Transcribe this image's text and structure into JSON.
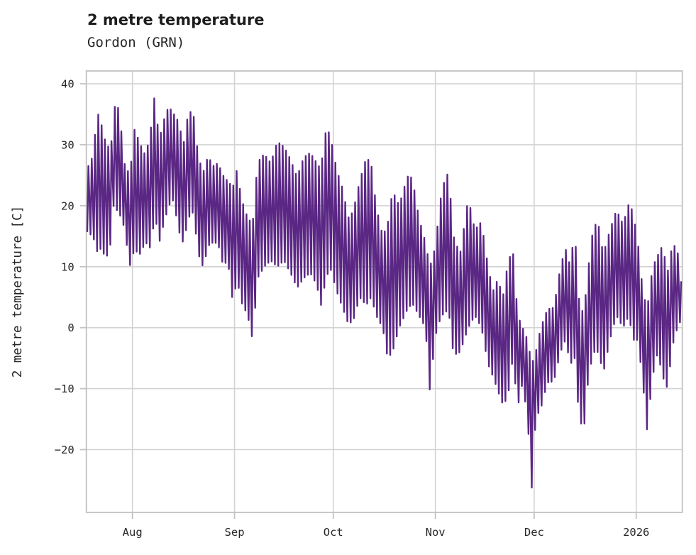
{
  "header": {
    "title": "2 metre temperature",
    "subtitle": "Gordon (GRN)"
  },
  "chart_data": {
    "type": "line",
    "title": "2 metre temperature",
    "subtitle": "Gordon (GRN)",
    "xlabel": "",
    "ylabel": "2 metre temperature [C]",
    "legend": null,
    "grid": true,
    "background": "#ffffff",
    "line_color": "#5b2784",
    "grid_color": "#d2d2d2",
    "spine_color": "#c2c2c2",
    "tick_color": "#c2c2c2",
    "text_color": "#262626",
    "ylim": [
      -30.3,
      42.1
    ],
    "x_axis": {
      "unit": "days since series start (~18 July)",
      "start_label_day": 0,
      "end_day": 181,
      "note": "x tick marks sit at the first day of each month; series is sub-daily temperature with strong diurnal cycle"
    },
    "yticks": [
      {
        "label": "40",
        "value": 40
      },
      {
        "label": "30",
        "value": 30
      },
      {
        "label": "20",
        "value": 20
      },
      {
        "label": "10",
        "value": 10
      },
      {
        "label": "0",
        "value": 0
      },
      {
        "label": "−10",
        "value": -10
      },
      {
        "label": "−20",
        "value": -20
      }
    ],
    "xticks": [
      {
        "label": "Aug",
        "day": 14
      },
      {
        "label": "Sep",
        "day": 45
      },
      {
        "label": "Oct",
        "day": 75
      },
      {
        "label": "Nov",
        "day": 106
      },
      {
        "label": "Dec",
        "day": 136
      },
      {
        "label": "2026",
        "day": 167
      }
    ],
    "extremes": {
      "max_c": 38.9,
      "max_when": "~8 Aug",
      "min_c": -26.4,
      "min_when": "~30 Nov / 1 Dec"
    },
    "series": [
      {
        "name": "2 metre temperature",
        "color": "#5b2784",
        "points_per_day": 2,
        "envelope_anchors_day_min_max": [
          [
            0,
            16,
            22
          ],
          [
            0.7,
            15.5,
            27
          ],
          [
            2,
            15,
            28
          ],
          [
            3.3,
            12.5,
            35.5
          ],
          [
            4.5,
            13,
            33.5
          ],
          [
            6,
            11.3,
            30
          ],
          [
            7.5,
            14,
            29.3
          ],
          [
            8.2,
            20,
            36.3
          ],
          [
            10,
            18.8,
            36
          ],
          [
            11.5,
            16.5,
            27
          ],
          [
            13.2,
            10.1,
            25
          ],
          [
            14.7,
            13,
            32.8
          ],
          [
            16,
            11.8,
            30.5
          ],
          [
            18,
            14,
            28.2
          ],
          [
            19.5,
            13,
            32.2
          ],
          [
            20.9,
            18.8,
            38.9
          ],
          [
            22,
            13.6,
            30.5
          ],
          [
            23.5,
            17,
            34
          ],
          [
            25,
            20,
            36.3
          ],
          [
            26.5,
            21,
            35.1
          ],
          [
            28,
            16,
            33.8
          ],
          [
            29.5,
            13.8,
            30
          ],
          [
            31,
            18,
            35.5
          ],
          [
            32.5,
            19,
            35.2
          ],
          [
            34,
            12.1,
            28
          ],
          [
            35.5,
            9.9,
            25.5
          ],
          [
            37,
            13.4,
            28.2
          ],
          [
            38.5,
            14,
            26.5
          ],
          [
            40,
            13.8,
            27
          ],
          [
            41.5,
            10.3,
            25
          ],
          [
            43,
            10.9,
            24
          ],
          [
            44.5,
            4,
            23
          ],
          [
            45.8,
            8,
            26.1
          ],
          [
            47,
            4.3,
            21.3
          ],
          [
            49,
            2,
            18
          ],
          [
            50.5,
            -2,
            17
          ],
          [
            52,
            8.1,
            27.1
          ],
          [
            54,
            10,
            28.5
          ],
          [
            56,
            11,
            27
          ],
          [
            58,
            10,
            30.5
          ],
          [
            60,
            11,
            29.7
          ],
          [
            62,
            9,
            27.6
          ],
          [
            64,
            6.5,
            24.7
          ],
          [
            66,
            8.1,
            27.9
          ],
          [
            68,
            9,
            28.7
          ],
          [
            70,
            7,
            27
          ],
          [
            71.2,
            3.5,
            26
          ],
          [
            72.8,
            8,
            32.6
          ],
          [
            74,
            10,
            31.8
          ],
          [
            76,
            6,
            26
          ],
          [
            78,
            3,
            22.5
          ],
          [
            79.5,
            0.7,
            18
          ],
          [
            81,
            1,
            19
          ],
          [
            83,
            5,
            24
          ],
          [
            85,
            3.7,
            27.9
          ],
          [
            86.5,
            5,
            27
          ],
          [
            88,
            2,
            20
          ],
          [
            90,
            0,
            15
          ],
          [
            91.5,
            -5,
            16.9
          ],
          [
            93,
            -4,
            22.5
          ],
          [
            95,
            0,
            20
          ],
          [
            97.5,
            3,
            24.8
          ],
          [
            99,
            4,
            24.6
          ],
          [
            101,
            2,
            18
          ],
          [
            103,
            0,
            14
          ],
          [
            104.3,
            -10.3,
            10
          ],
          [
            105.5,
            -4,
            12
          ],
          [
            106.5,
            0,
            16
          ],
          [
            108,
            2,
            22.9
          ],
          [
            110,
            3,
            25.6
          ],
          [
            111.5,
            -4.5,
            15
          ],
          [
            113.5,
            -4,
            12
          ],
          [
            116,
            0,
            21.3
          ],
          [
            118,
            2,
            16
          ],
          [
            120,
            0,
            17.4
          ],
          [
            122,
            -6,
            10
          ],
          [
            123.5,
            -8,
            6
          ],
          [
            125,
            -10.4,
            8
          ],
          [
            126.5,
            -12.6,
            5
          ],
          [
            128,
            -11.5,
            10.6
          ],
          [
            129.5,
            -5,
            13
          ],
          [
            131,
            -13,
            2
          ],
          [
            132.5,
            -9,
            0
          ],
          [
            134,
            -15,
            -2
          ],
          [
            135.3,
            -26.4,
            -6
          ],
          [
            136.5,
            -14.6,
            -4
          ],
          [
            138,
            -13.4,
            0
          ],
          [
            140,
            -9,
            3
          ],
          [
            142,
            -8.8,
            3.3
          ],
          [
            144,
            -4,
            10
          ],
          [
            145.5,
            -2,
            13
          ],
          [
            147,
            -6,
            10
          ],
          [
            148.3,
            -5,
            16.4
          ],
          [
            149.5,
            -13.8,
            5
          ],
          [
            151,
            -17.5,
            2
          ],
          [
            152.5,
            -8,
            10
          ],
          [
            154,
            -4,
            16.8
          ],
          [
            155.5,
            -4,
            17
          ],
          [
            157,
            -7.5,
            12
          ],
          [
            159,
            -2,
            16
          ],
          [
            161,
            2,
            19.3
          ],
          [
            163,
            0,
            17
          ],
          [
            164.8,
            2,
            20.4
          ],
          [
            166,
            -2,
            19
          ],
          [
            167.5,
            -2,
            14
          ],
          [
            169,
            -9,
            6
          ],
          [
            170.3,
            -16.8,
            3
          ],
          [
            172,
            -8,
            10
          ],
          [
            173.5,
            -4,
            11.8
          ],
          [
            175,
            -8,
            13.5
          ],
          [
            176.5,
            -10,
            9
          ],
          [
            178,
            -3,
            13.7
          ],
          [
            179.5,
            0,
            13
          ],
          [
            180.4,
            1,
            7.5
          ]
        ]
      }
    ]
  }
}
